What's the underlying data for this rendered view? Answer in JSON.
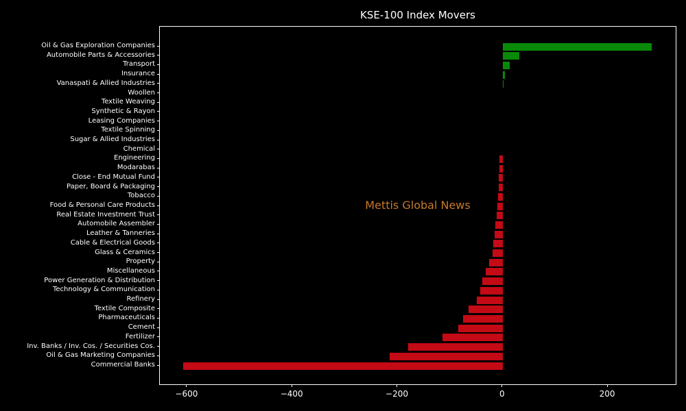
{
  "title": "KSE-100 Index Movers",
  "watermark": "Mettis Global News",
  "colors": {
    "background": "#000000",
    "axis_text": "#ffffff",
    "positive": "#088a08",
    "negative": "#c40a15",
    "watermark": "#c87a28"
  },
  "chart_data": {
    "type": "bar",
    "orientation": "horizontal",
    "title": "KSE-100 Index Movers",
    "xlabel": "",
    "ylabel": "",
    "grid": false,
    "legend": false,
    "xlim": [
      -652,
      329
    ],
    "x_ticks": [
      -600,
      -400,
      -200,
      0,
      200
    ],
    "x_tick_labels": [
      "−600",
      "−400",
      "−200",
      "0",
      "200"
    ],
    "categories": [
      "Oil & Gas Exploration Companies",
      "Automobile Parts & Accessories",
      "Transport",
      "Insurance",
      "Vanaspati & Allied Industries",
      "Woollen",
      "Textile Weaving",
      "Synthetic & Rayon",
      "Leasing Companies",
      "Textile Spinning",
      "Sugar & Allied Industries",
      "Chemical",
      "Engineering",
      "Modarabas",
      "Close - End Mutual Fund",
      "Paper, Board & Packaging",
      "Tobacco",
      "Food & Personal Care Products",
      "Real Estate Investment Trust",
      "Automobile Assembler",
      "Leather & Tanneries",
      "Cable & Electrical Goods",
      "Glass & Ceramics",
      "Property",
      "Miscellaneous",
      "Power Generation & Distribution",
      "Technology & Communication",
      "Refinery",
      "Textile Composite",
      "Pharmaceuticals",
      "Cement",
      "Fertilizer",
      "Inv. Banks / Inv. Cos. / Securities Cos.",
      "Oil & Gas Marketing Companies",
      "Commercial Banks"
    ],
    "values": [
      284,
      31,
      13,
      4,
      2,
      0,
      0,
      0,
      0,
      0,
      0,
      0,
      -6,
      -6,
      -7,
      -8,
      -9,
      -10,
      -11,
      -14,
      -16,
      -18,
      -20,
      -26,
      -33,
      -39,
      -43,
      -50,
      -65,
      -75,
      -85,
      -114,
      -180,
      -215,
      -608
    ]
  }
}
